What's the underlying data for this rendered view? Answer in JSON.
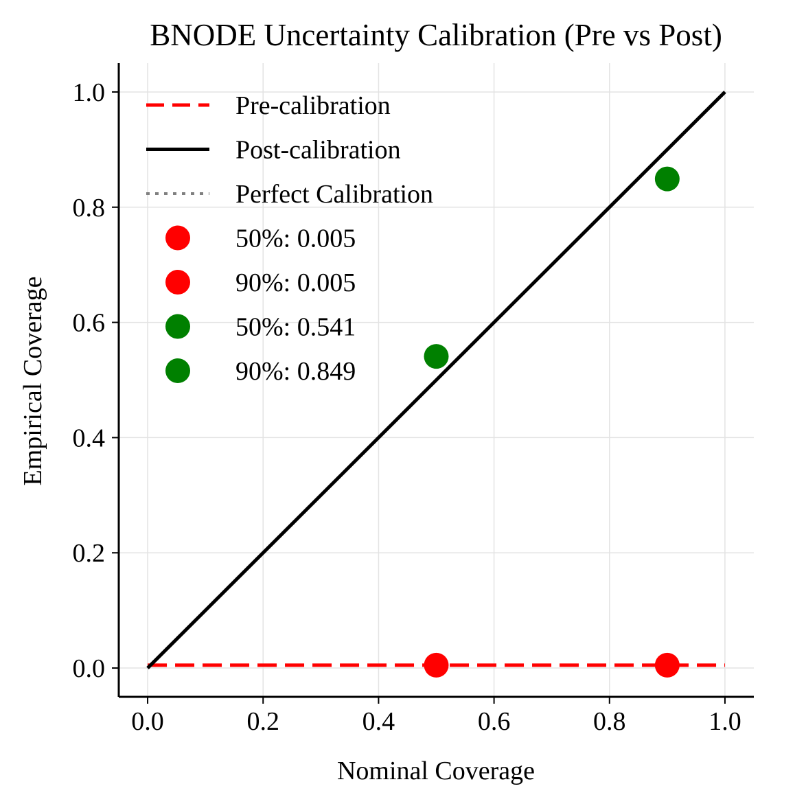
{
  "chart_data": {
    "type": "line",
    "title": "BNODE Uncertainty Calibration (Pre vs Post)",
    "xlabel": "Nominal Coverage",
    "ylabel": "Empirical Coverage",
    "xlim": [
      -0.05,
      1.05
    ],
    "ylim": [
      -0.05,
      1.05
    ],
    "x_ticks": [
      "0.0",
      "0.2",
      "0.4",
      "0.6",
      "0.8",
      "1.0"
    ],
    "y_ticks": [
      "0.0",
      "0.2",
      "0.4",
      "0.6",
      "0.8",
      "1.0"
    ],
    "grid": true,
    "legend_position": "upper-left",
    "series": [
      {
        "name": "Pre-calibration",
        "style": "dashed",
        "color": "#ff0000",
        "x": [
          0.0,
          1.0
        ],
        "y": [
          0.005,
          0.005
        ]
      },
      {
        "name": "Post-calibration",
        "style": "solid",
        "color": "#000000",
        "x": [
          0.0,
          1.0
        ],
        "y": [
          0.0,
          1.0
        ]
      },
      {
        "name": "Perfect Calibration",
        "style": "dotted",
        "color": "#808080",
        "x": [
          0.0,
          1.0
        ],
        "y": [
          0.0,
          1.0
        ]
      }
    ],
    "points": [
      {
        "label": "50%: 0.005",
        "x": 0.5,
        "y": 0.005,
        "color": "#ff0000"
      },
      {
        "label": "90%: 0.005",
        "x": 0.9,
        "y": 0.005,
        "color": "#ff0000"
      },
      {
        "label": "50%: 0.541",
        "x": 0.5,
        "y": 0.541,
        "color": "#008000"
      },
      {
        "label": "90%: 0.849",
        "x": 0.9,
        "y": 0.849,
        "color": "#008000"
      }
    ]
  }
}
